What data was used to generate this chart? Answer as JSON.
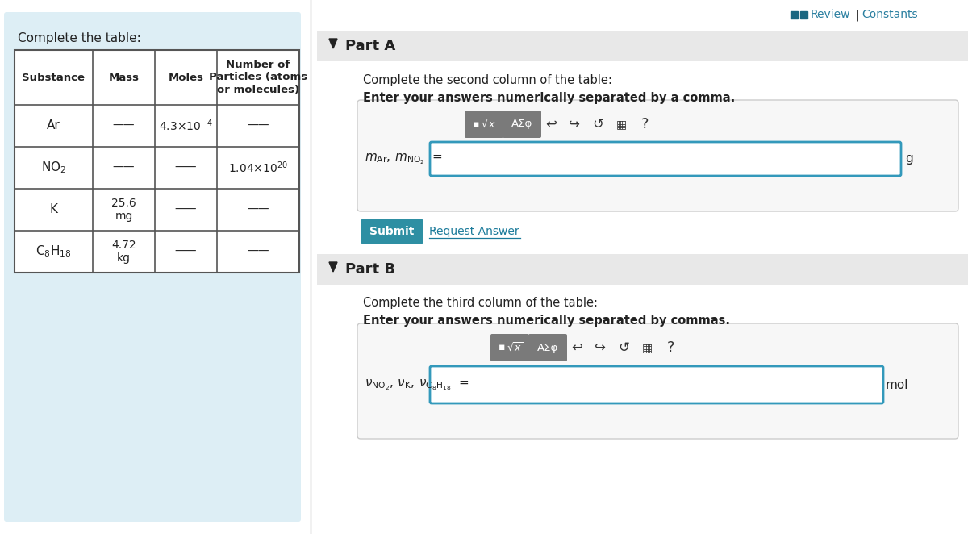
{
  "bg_color": "#ddeef5",
  "white": "#ffffff",
  "light_gray": "#ebebeb",
  "input_bg": "#f7f7f7",
  "dark_gray": "#808080",
  "teal": "#1a7a9a",
  "teal_dark": "#1a6680",
  "teal_btn": "#2e8fa3",
  "black": "#111111",
  "near_black": "#222222",
  "table_title": "Complete the table:",
  "col_headers": [
    "Substance",
    "Mass",
    "Moles",
    "Number of\nParticles (atoms\nor molecules)"
  ],
  "part_a_header": "Part A",
  "part_a_desc": "Complete the second column of the table:",
  "part_a_bold": "Enter your answers numerically separated by a comma.",
  "part_b_header": "Part B",
  "part_b_desc": "Complete the third column of the table:",
  "part_b_bold": "Enter your answers numerically separated by commas.",
  "submit_text": "Submit",
  "request_text": "Request Answer",
  "unit_a": "g",
  "unit_b": "mol",
  "review_color": "#2a7fa0",
  "separator_color": "#bbbbbb",
  "table_line_color": "#555555",
  "btn_color": "#888888",
  "input_border": "#3399bb",
  "header_bar": "#e8e8e8"
}
